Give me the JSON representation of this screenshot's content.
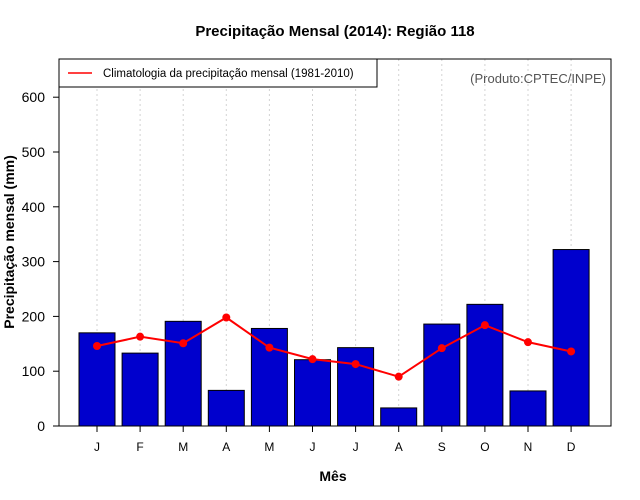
{
  "chart_data": {
    "type": "bar",
    "title": "Precipitação Mensal (2014): Região 118",
    "xlabel": "Mês",
    "ylabel": "Precipitação mensal (mm)",
    "ylim": [
      0,
      650
    ],
    "yticks": [
      0,
      100,
      200,
      300,
      400,
      500,
      600
    ],
    "categories": [
      "J",
      "F",
      "M",
      "A",
      "M",
      "J",
      "J",
      "A",
      "S",
      "O",
      "N",
      "D"
    ],
    "series": [
      {
        "name": "Precipitação mensal (2014)",
        "type": "bar",
        "values": [
          170,
          133,
          191,
          65,
          178,
          121,
          143,
          33,
          186,
          222,
          64,
          322
        ]
      },
      {
        "name": "Climatologia da precipitação mensal (1981-2010)",
        "type": "line",
        "values": [
          146,
          163,
          151,
          198,
          143,
          122,
          113,
          90,
          142,
          184,
          153,
          136
        ]
      }
    ],
    "legend": {
      "position": "top-left",
      "entries": [
        "Climatologia da precipitação mensal (1981-2010)"
      ]
    },
    "credit": "(Produto:CPTEC/INPE)",
    "colors": {
      "bar_fill": "#0000cd",
      "bar_stroke": "#000000",
      "line": "#ff0000",
      "grid": "#d3d3d3"
    },
    "grid": "vertical-dotted"
  }
}
